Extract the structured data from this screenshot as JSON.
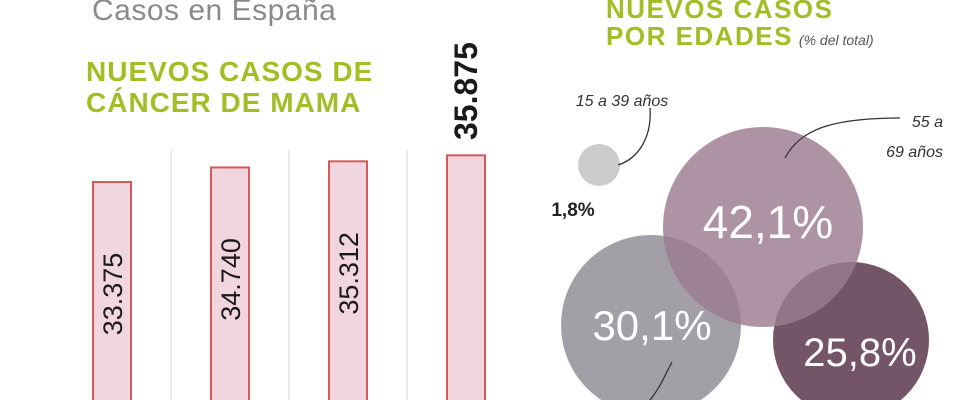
{
  "header": {
    "subtitle": "Casos en España"
  },
  "chart_data": [
    {
      "type": "bar",
      "title_line1": "NUEVOS CASOS DE",
      "title_line2": "CÁNCER DE MAMA",
      "categories": [
        "",
        "",
        "",
        ""
      ],
      "values": [
        33375,
        34740,
        35312,
        35875
      ],
      "value_labels": [
        "33.375",
        "34.740",
        "35.312",
        "35.875"
      ],
      "bar_fill": "#f2d6df",
      "bar_stroke": "#d45a5a",
      "highlight_label_color": "#1a1a1a"
    },
    {
      "type": "bubble",
      "title_line1": "NUEVOS CASOS",
      "title_line2": "POR EDADES",
      "title_note": "(% del total)",
      "bubbles": [
        {
          "label": "15 a 39 años",
          "value": 1.8,
          "value_label": "1,8%",
          "color": "#c9c9cb"
        },
        {
          "label": "55 a 69 años",
          "value": 42.1,
          "value_label": "42,1%",
          "color": "#9b7b8f"
        },
        {
          "label": "",
          "value": 30.1,
          "value_label": "30,1%",
          "color": "#9e9aa1"
        },
        {
          "label": "",
          "value": 25.8,
          "value_label": "25,8%",
          "color": "#6b4c5f"
        }
      ]
    }
  ]
}
